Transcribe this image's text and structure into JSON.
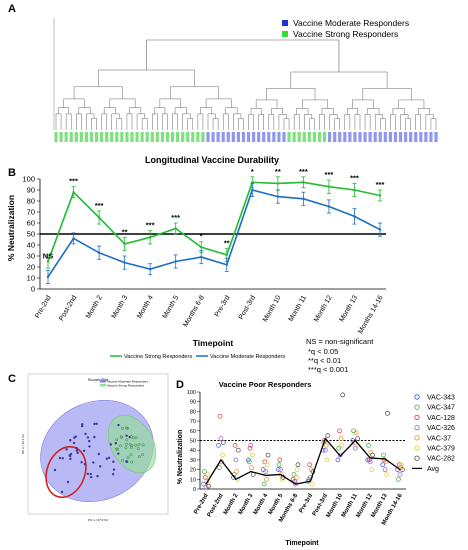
{
  "panels": {
    "a": "A",
    "b": "B",
    "c": "C",
    "d": "D"
  },
  "colors": {
    "green": "#22bb33",
    "blue": "#1a6fc4",
    "dendro": "#666666",
    "poor_red": "#cc2222",
    "pca_blue": "#8080ee",
    "pca_green": "#90e090"
  },
  "chart_data": [
    {
      "panel": "A",
      "type": "dendrogram",
      "legend": [
        {
          "name": "Vaccine Moderate Responders",
          "color": "#2233cc"
        },
        {
          "name": "Vaccine Strong Responders",
          "color": "#33dd33"
        }
      ]
    },
    {
      "panel": "B",
      "type": "line",
      "title": "Longitudinal Vaccine Durability",
      "xlabel": "Timepoint",
      "ylabel": "% Neutralization",
      "ylim": [
        0,
        100
      ],
      "yticks": [
        0,
        10,
        20,
        30,
        40,
        50,
        60,
        70,
        80,
        90,
        100
      ],
      "reference_line": 50,
      "categories": [
        "Pre-2nd",
        "Post-2nd",
        "Month 2",
        "Month 3",
        "Month 4",
        "Month 5",
        "Months 6-8",
        "Pre-3rd",
        "Post-3rd",
        "Month 10",
        "Month 11",
        "Month 12",
        "Month 13",
        "Months 14-16"
      ],
      "series": [
        {
          "name": "Vaccine Strong Responders",
          "color": "#22bb33",
          "values": [
            25,
            88,
            65,
            41,
            47,
            55,
            38,
            31,
            97,
            96,
            97,
            93,
            90,
            85
          ],
          "err": [
            6,
            5,
            6,
            6,
            6,
            5,
            5,
            6,
            5,
            6,
            5,
            6,
            6,
            5
          ]
        },
        {
          "name": "Vaccine Moderate Responders",
          "color": "#1a6fc4",
          "values": [
            11,
            46,
            33,
            24,
            18,
            25,
            29,
            22,
            90,
            84,
            82,
            75,
            66,
            54
          ],
          "err": [
            6,
            5,
            6,
            6,
            5,
            6,
            6,
            6,
            6,
            6,
            6,
            6,
            7,
            6
          ]
        }
      ],
      "significance": [
        "NS",
        "***",
        "***",
        "**",
        "***",
        "***",
        "*",
        "**",
        "*",
        "**",
        "***",
        "***",
        "***",
        "***"
      ],
      "legend_text": [
        "Vaccine Strong Responders",
        "Vaccine Moderate Responders"
      ],
      "key": [
        "NS = non-significant",
        "*q < 0.05",
        "**q < 0.01",
        "***q < 0.001"
      ]
    },
    {
      "panel": "C",
      "type": "scatter",
      "title": "Scores Plot",
      "xlabel": "PC 1 ( 37.0 %)",
      "ylabel": "PC 2 ( 12.1 %)",
      "legend": [
        "Vaccine Moderate Responders",
        "Vaccine Strong Responders"
      ]
    },
    {
      "panel": "D",
      "type": "scatter",
      "title": "Vaccine Poor Responders",
      "xlabel": "Timepoint",
      "ylabel": "% Neutralization",
      "ylim": [
        0,
        100
      ],
      "yticks": [
        0,
        10,
        20,
        30,
        40,
        50,
        60,
        70,
        80,
        90,
        100
      ],
      "reference_line": 50,
      "categories": [
        "Pre-2nd",
        "Post-2nd",
        "Month 2",
        "Month 3",
        "Month 4",
        "Month 5",
        "Months 6-8",
        "Pre-3rd",
        "Post-3rd",
        "Month 10",
        "Month 11",
        "Month 12",
        "Month 13",
        "Month 14-16"
      ],
      "series": [
        {
          "name": "VAC-343",
          "color": "#3355dd",
          "values": [
            5,
            45,
            12,
            30,
            20,
            20,
            10,
            8,
            40,
            30,
            50,
            30,
            25,
            20
          ]
        },
        {
          "name": "VAC-347",
          "color": "#33aa33",
          "values": [
            18,
            22,
            15,
            28,
            5,
            25,
            15,
            10,
            48,
            42,
            60,
            45,
            35,
            10
          ]
        },
        {
          "name": "VAC-128",
          "color": "#dd3333",
          "values": [
            12,
            75,
            45,
            42,
            28,
            30,
            8,
            25,
            50,
            60,
            48,
            30,
            30,
            25
          ]
        },
        {
          "name": "VAC-326",
          "color": "#9955cc",
          "values": [
            2,
            52,
            30,
            45,
            18,
            20,
            5,
            12,
            40,
            35,
            42,
            28,
            20,
            15
          ]
        },
        {
          "name": "VAC-37",
          "color": "#ee8822",
          "values": [
            8,
            28,
            18,
            22,
            10,
            15,
            12,
            20,
            45,
            52,
            58,
            38,
            28,
            22
          ]
        },
        {
          "name": "VAC-379",
          "color": "#ddcc22",
          "values": [
            15,
            35,
            10,
            35,
            25,
            10,
            20,
            5,
            30,
            45,
            45,
            20,
            15,
            25
          ]
        },
        {
          "name": "VAC-282",
          "color": "#444444",
          "values": [
            3,
            48,
            40,
            15,
            35,
            12,
            25,
            18,
            55,
            97,
            52,
            35,
            78,
            20
          ]
        }
      ],
      "avg": {
        "name": "Avg",
        "values": [
          5,
          30,
          10,
          18,
          14,
          15,
          5,
          8,
          52,
          34,
          50,
          32,
          31,
          20
        ]
      }
    }
  ]
}
